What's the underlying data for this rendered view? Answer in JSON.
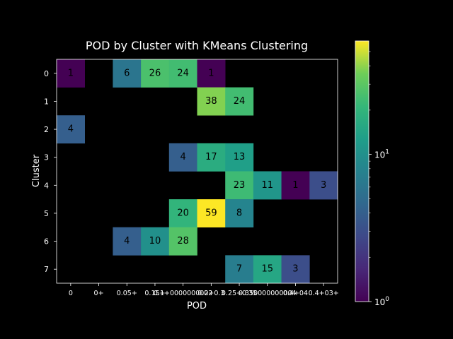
{
  "chart_data": {
    "type": "heatmap",
    "title": "POD by Cluster with KMeans Clustering",
    "xlabel": "POD",
    "ylabel": "Cluster",
    "x_tick_labels": [
      "0",
      "0+",
      "0.05+",
      "0.15+",
      "0.1+0000000002",
      "0.2+0.3",
      "0.25+0.35",
      "0.350000000004",
      "0.4+04",
      "0.4+03+"
    ],
    "y_tick_labels": [
      "0",
      "1",
      "2",
      "3",
      "4",
      "5",
      "6",
      "7"
    ],
    "colorbar": {
      "scale": "log",
      "min": 1,
      "max": 59,
      "colormap": "viridis",
      "tick_labels": [
        {
          "value": 1,
          "label": "10",
          "exp": "0"
        },
        {
          "value": 10,
          "label": "10",
          "exp": "1"
        }
      ]
    },
    "background_color": "#000000",
    "cells": [
      {
        "row": 0,
        "col": 0,
        "value": 1
      },
      {
        "row": 0,
        "col": 2,
        "value": 6
      },
      {
        "row": 0,
        "col": 3,
        "value": 26
      },
      {
        "row": 0,
        "col": 4,
        "value": 24
      },
      {
        "row": 0,
        "col": 5,
        "value": 1
      },
      {
        "row": 1,
        "col": 5,
        "value": 38
      },
      {
        "row": 1,
        "col": 6,
        "value": 24
      },
      {
        "row": 2,
        "col": 0,
        "value": 4
      },
      {
        "row": 3,
        "col": 4,
        "value": 4
      },
      {
        "row": 3,
        "col": 5,
        "value": 17
      },
      {
        "row": 3,
        "col": 6,
        "value": 13
      },
      {
        "row": 4,
        "col": 6,
        "value": 23
      },
      {
        "row": 4,
        "col": 7,
        "value": 11
      },
      {
        "row": 4,
        "col": 8,
        "value": 1
      },
      {
        "row": 4,
        "col": 9,
        "value": 3
      },
      {
        "row": 5,
        "col": 4,
        "value": 20
      },
      {
        "row": 5,
        "col": 5,
        "value": 59
      },
      {
        "row": 5,
        "col": 6,
        "value": 8
      },
      {
        "row": 6,
        "col": 2,
        "value": 4
      },
      {
        "row": 6,
        "col": 3,
        "value": 10
      },
      {
        "row": 6,
        "col": 4,
        "value": 28
      },
      {
        "row": 7,
        "col": 6,
        "value": 7
      },
      {
        "row": 7,
        "col": 7,
        "value": 15
      },
      {
        "row": 7,
        "col": 8,
        "value": 3
      }
    ]
  }
}
